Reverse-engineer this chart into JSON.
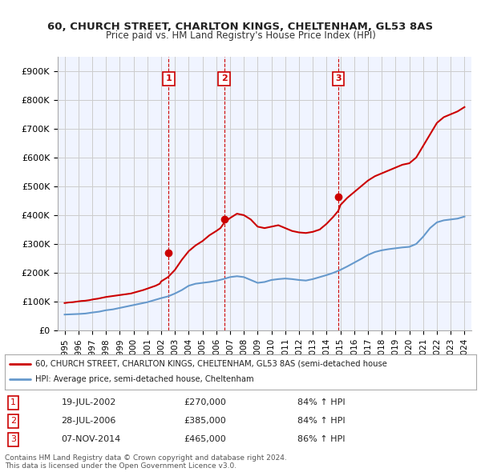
{
  "title1": "60, CHURCH STREET, CHARLTON KINGS, CHELTENHAM, GL53 8AS",
  "title2": "Price paid vs. HM Land Registry's House Price Index (HPI)",
  "legend_property": "60, CHURCH STREET, CHARLTON KINGS, CHELTENHAM, GL53 8AS (semi-detached house",
  "legend_hpi": "HPI: Average price, semi-detached house, Cheltenham",
  "property_color": "#cc0000",
  "hpi_color": "#6699cc",
  "sale_color": "#cc0000",
  "annotation_bg": "#ffffff",
  "annotation_border": "#cc0000",
  "transactions": [
    {
      "num": 1,
      "date": "19-JUL-2002",
      "price": 270000,
      "pct": "84%",
      "direction": "↑"
    },
    {
      "num": 2,
      "date": "28-JUL-2006",
      "price": 385000,
      "pct": "84%",
      "direction": "↑"
    },
    {
      "num": 3,
      "date": "07-NOV-2014",
      "price": 465000,
      "pct": "86%",
      "direction": "↑"
    }
  ],
  "footer1": "Contains HM Land Registry data © Crown copyright and database right 2024.",
  "footer2": "This data is licensed under the Open Government Licence v3.0.",
  "ylim": [
    0,
    950000
  ],
  "yticks": [
    0,
    100000,
    200000,
    300000,
    400000,
    500000,
    600000,
    700000,
    800000,
    900000
  ],
  "ytick_labels": [
    "£0",
    "£100K",
    "£200K",
    "£300K",
    "£400K",
    "£500K",
    "£600K",
    "£700K",
    "£800K",
    "£900K"
  ],
  "hpi_data": {
    "years": [
      1995,
      1995.5,
      1996,
      1996.5,
      1997,
      1997.5,
      1998,
      1998.5,
      1999,
      1999.5,
      2000,
      2000.5,
      2001,
      2001.5,
      2002,
      2002.5,
      2003,
      2003.5,
      2004,
      2004.5,
      2005,
      2005.5,
      2006,
      2006.5,
      2007,
      2007.5,
      2008,
      2008.5,
      2009,
      2009.5,
      2010,
      2010.5,
      2011,
      2011.5,
      2012,
      2012.5,
      2013,
      2013.5,
      2014,
      2014.5,
      2015,
      2015.5,
      2016,
      2016.5,
      2017,
      2017.5,
      2018,
      2018.5,
      2019,
      2019.5,
      2020,
      2020.5,
      2021,
      2021.5,
      2022,
      2022.5,
      2023,
      2023.5,
      2024
    ],
    "values": [
      55000,
      56000,
      57000,
      58500,
      62000,
      65000,
      70000,
      73000,
      78000,
      83000,
      88000,
      93000,
      98000,
      105000,
      112000,
      118000,
      128000,
      140000,
      155000,
      162000,
      165000,
      168000,
      172000,
      178000,
      185000,
      188000,
      185000,
      175000,
      165000,
      168000,
      175000,
      178000,
      180000,
      178000,
      175000,
      173000,
      178000,
      185000,
      192000,
      200000,
      210000,
      222000,
      235000,
      248000,
      262000,
      272000,
      278000,
      282000,
      285000,
      288000,
      290000,
      300000,
      325000,
      355000,
      375000,
      382000,
      385000,
      388000,
      395000
    ]
  },
  "property_data": {
    "years": [
      1995,
      1995.3,
      1995.6,
      1995.9,
      1996.2,
      1996.5,
      1996.8,
      1997.1,
      1997.4,
      1997.7,
      1998.0,
      1998.3,
      1998.6,
      1998.9,
      1999.2,
      1999.5,
      1999.8,
      2000.1,
      2000.4,
      2000.7,
      2001.0,
      2001.3,
      2001.6,
      2001.9,
      2002.0,
      2002.5,
      2003.0,
      2003.5,
      2004.0,
      2004.5,
      2005.0,
      2005.5,
      2006.0,
      2006.3,
      2006.6,
      2007.0,
      2007.5,
      2008.0,
      2008.5,
      2009.0,
      2009.5,
      2010.0,
      2010.5,
      2011.0,
      2011.5,
      2012.0,
      2012.5,
      2013.0,
      2013.5,
      2014.0,
      2014.5,
      2014.85,
      2015.0,
      2015.5,
      2016.0,
      2016.5,
      2017.0,
      2017.5,
      2018.0,
      2018.5,
      2019.0,
      2019.5,
      2020.0,
      2020.5,
      2021.0,
      2021.5,
      2022.0,
      2022.5,
      2023.0,
      2023.5,
      2024.0
    ],
    "values": [
      95000,
      97000,
      98000,
      100000,
      102000,
      103000,
      105000,
      108000,
      110000,
      113000,
      116000,
      118000,
      120000,
      122000,
      124000,
      126000,
      128000,
      132000,
      136000,
      140000,
      145000,
      150000,
      155000,
      162000,
      170000,
      185000,
      210000,
      245000,
      275000,
      295000,
      310000,
      330000,
      345000,
      355000,
      375000,
      390000,
      405000,
      400000,
      385000,
      360000,
      355000,
      360000,
      365000,
      355000,
      345000,
      340000,
      338000,
      342000,
      350000,
      370000,
      395000,
      415000,
      435000,
      460000,
      480000,
      500000,
      520000,
      535000,
      545000,
      555000,
      565000,
      575000,
      580000,
      600000,
      640000,
      680000,
      720000,
      740000,
      750000,
      760000,
      775000
    ]
  },
  "sale_points": [
    {
      "year": 2002.55,
      "price": 270000,
      "label": "1"
    },
    {
      "year": 2006.57,
      "price": 385000,
      "label": "2"
    },
    {
      "year": 2014.85,
      "price": 465000,
      "label": "3"
    }
  ],
  "vlines": [
    2002.55,
    2006.57,
    2014.85
  ],
  "xtick_years": [
    1995,
    1996,
    1997,
    1998,
    1999,
    2000,
    2001,
    2002,
    2003,
    2004,
    2005,
    2006,
    2007,
    2008,
    2009,
    2010,
    2011,
    2012,
    2013,
    2014,
    2015,
    2016,
    2017,
    2018,
    2019,
    2020,
    2021,
    2022,
    2023,
    2024
  ],
  "bg_color": "#ffffff",
  "grid_color": "#cccccc",
  "plot_bg": "#f0f4ff"
}
